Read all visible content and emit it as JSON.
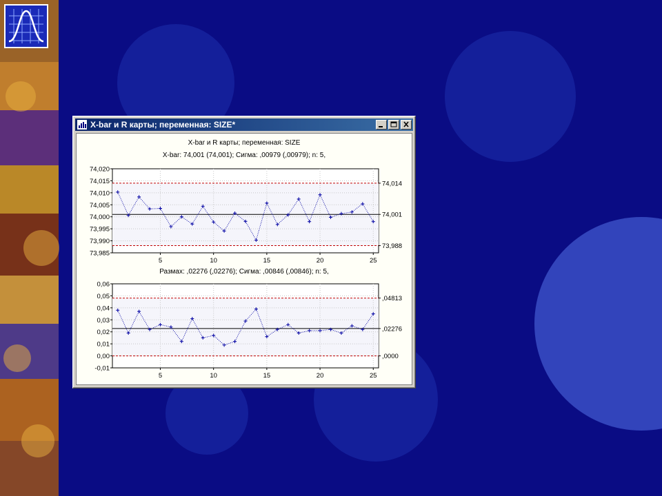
{
  "window": {
    "title": "X-bar и R карты; переменная:  SIZE*"
  },
  "icons": {
    "logo": "normal-distribution-icon",
    "app": "statistica-graph-icon",
    "minimize": "minimize-icon",
    "maximize": "maximize-icon",
    "close": "close-icon"
  },
  "colors": {
    "background": "#0a0c84",
    "series": "#1010a8",
    "control_limit": "#c00000",
    "center_line": "#000000"
  },
  "chart": {
    "title": "X-bar и R карты; переменная:  SIZE"
  },
  "chart_data": [
    {
      "type": "line",
      "title": "X-bar: 74,001 (74,001); Сигма: ,00979 (,00979); n: 5,",
      "x": [
        1,
        2,
        3,
        4,
        5,
        6,
        7,
        8,
        9,
        10,
        11,
        12,
        13,
        14,
        15,
        16,
        17,
        18,
        19,
        20,
        21,
        22,
        23,
        24,
        25
      ],
      "values": [
        74.0103,
        74.0006,
        74.0083,
        74.0033,
        74.0035,
        73.9959,
        74.0,
        73.997,
        74.0044,
        73.9978,
        73.9941,
        74.0015,
        73.9981,
        73.9903,
        74.0057,
        73.9968,
        74.0008,
        74.0074,
        73.998,
        74.0092,
        73.9998,
        74.0013,
        74.002,
        74.0054,
        73.998
      ],
      "ylim": [
        73.985,
        74.02
      ],
      "xlim": [
        0.5,
        25.5
      ],
      "y_tick_labels": [
        "74,020",
        "74,015",
        "74,010",
        "74,005",
        "74,000",
        "73,995",
        "73,990",
        "73,985"
      ],
      "x_tick_labels": [
        "5",
        "10",
        "15",
        "20",
        "25"
      ],
      "limits": {
        "ucl": 74.014,
        "center": 74.001,
        "lcl": 73.988
      },
      "limit_labels": [
        "74,014",
        "74,001",
        "73,988"
      ],
      "grid": true
    },
    {
      "type": "line",
      "title": "Размах: ,02276 (,02276); Сигма: ,00846 (,00846); n: 5,",
      "x": [
        1,
        2,
        3,
        4,
        5,
        6,
        7,
        8,
        9,
        10,
        11,
        12,
        13,
        14,
        15,
        16,
        17,
        18,
        19,
        20,
        21,
        22,
        23,
        24,
        25
      ],
      "values": [
        0.038,
        0.019,
        0.037,
        0.022,
        0.026,
        0.024,
        0.012,
        0.031,
        0.015,
        0.017,
        0.009,
        0.012,
        0.029,
        0.039,
        0.016,
        0.022,
        0.026,
        0.019,
        0.021,
        0.021,
        0.022,
        0.019,
        0.025,
        0.022,
        0.035
      ],
      "ylim": [
        -0.01,
        0.06
      ],
      "xlim": [
        0.5,
        25.5
      ],
      "y_tick_labels": [
        "0,06",
        "0,05",
        "0,04",
        "0,03",
        "0,02",
        "0,01",
        "0,00",
        "-0,01"
      ],
      "x_tick_labels": [
        "5",
        "10",
        "15",
        "20",
        "25"
      ],
      "limits": {
        "ucl": 0.04813,
        "center": 0.02276,
        "lcl": 0.0
      },
      "limit_labels": [
        ",04813",
        ",02276",
        ",0000"
      ],
      "grid": true
    }
  ]
}
